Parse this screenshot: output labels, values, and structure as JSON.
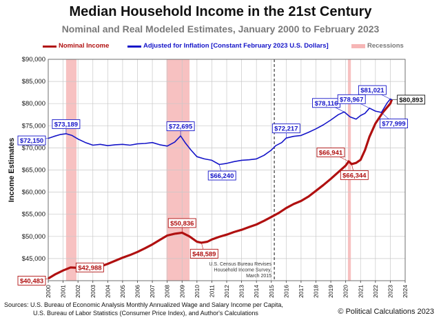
{
  "header": {
    "title": "Median Household Income in the 21st Century",
    "subtitle": "Nominal and Real Modeled Estimates, January 2000 to February 2023"
  },
  "legend": {
    "nominal": "Nominal Income",
    "real": "Adjusted for Inflation [Constant February 2023 U.S. Dollars]",
    "recessions": "Recessions"
  },
  "colors": {
    "nominal": "#b01010",
    "real": "#1414c8",
    "recession": "#f6b6b6",
    "grid": "#c8c8c8"
  },
  "footer": {
    "sources_line1": "Sources: U.S. Bureau of Economic Analysis Monthly Annualized Wage and Salary Income per Capita,",
    "sources_line2": "U.S. Bureau of Labor Statistics (Consumer Price Index), and Author's Calculations",
    "copyright": "© Political Calculations 2023"
  },
  "chart_data": {
    "type": "line",
    "ylabel": "Income Estimates",
    "xlabel": "",
    "xlim": [
      2000,
      2024
    ],
    "ylim": [
      40000,
      90000
    ],
    "y_ticks": [
      40000,
      45000,
      50000,
      55000,
      60000,
      65000,
      70000,
      75000,
      80000,
      85000,
      90000
    ],
    "y_tick_labels": [
      "$40,000",
      "$45,000",
      "$50,000",
      "$55,000",
      "$60,000",
      "$65,000",
      "$70,000",
      "$75,000",
      "$80,000",
      "$85,000",
      "$90,000"
    ],
    "x_ticks": [
      2000,
      2001,
      2002,
      2003,
      2004,
      2005,
      2006,
      2007,
      2008,
      2009,
      2010,
      2011,
      2012,
      2013,
      2014,
      2015,
      2016,
      2017,
      2018,
      2019,
      2020,
      2021,
      2022,
      2023,
      2024
    ],
    "x_tick_labels": [
      "2000",
      "2001",
      "2002",
      "2003",
      "2004",
      "2005",
      "2006",
      "2007",
      "2008",
      "2009",
      "2010",
      "2011",
      "2012",
      "2013",
      "2014",
      "2015",
      "2016",
      "2017",
      "2018",
      "2019",
      "2020",
      "2021",
      "2022",
      "2023",
      "2024"
    ],
    "grid": true,
    "legend_position": "top",
    "recessions": [
      [
        2001.2,
        2001.9
      ],
      [
        2007.95,
        2009.5
      ],
      [
        2020.15,
        2020.35
      ]
    ],
    "vline": {
      "x": 2015.2,
      "label_lines": [
        "U.S. Census Bureau Revises",
        "Household Income Survey,",
        "March 2015"
      ]
    },
    "series": [
      {
        "name": "Nominal Income",
        "points": [
          [
            2000,
            40483
          ],
          [
            2000.5,
            41500
          ],
          [
            2001,
            42300
          ],
          [
            2001.5,
            42988
          ],
          [
            2002,
            42900
          ],
          [
            2002.5,
            42800
          ],
          [
            2003,
            42900
          ],
          [
            2003.5,
            43200
          ],
          [
            2004,
            43800
          ],
          [
            2004.5,
            44500
          ],
          [
            2005,
            45200
          ],
          [
            2005.5,
            45800
          ],
          [
            2006,
            46500
          ],
          [
            2006.5,
            47300
          ],
          [
            2007,
            48200
          ],
          [
            2007.5,
            49200
          ],
          [
            2008,
            50200
          ],
          [
            2008.5,
            50600
          ],
          [
            2009,
            50836
          ],
          [
            2009.5,
            50000
          ],
          [
            2010,
            48800
          ],
          [
            2010.3,
            48589
          ],
          [
            2010.7,
            48800
          ],
          [
            2011,
            49300
          ],
          [
            2011.5,
            49900
          ],
          [
            2012,
            50400
          ],
          [
            2012.5,
            51000
          ],
          [
            2013,
            51500
          ],
          [
            2013.5,
            52100
          ],
          [
            2014,
            52700
          ],
          [
            2014.5,
            53500
          ],
          [
            2015,
            54400
          ],
          [
            2015.5,
            55300
          ],
          [
            2016,
            56400
          ],
          [
            2016.5,
            57300
          ],
          [
            2017,
            58000
          ],
          [
            2017.5,
            59000
          ],
          [
            2018,
            60300
          ],
          [
            2018.5,
            61600
          ],
          [
            2019,
            63000
          ],
          [
            2019.5,
            64500
          ],
          [
            2020,
            66000
          ],
          [
            2020.2,
            66941
          ],
          [
            2020.4,
            66344
          ],
          [
            2020.7,
            66600
          ],
          [
            2021,
            67300
          ],
          [
            2021.3,
            69500
          ],
          [
            2021.6,
            72500
          ],
          [
            2022,
            75500
          ],
          [
            2022.5,
            78000
          ],
          [
            2023,
            80000
          ],
          [
            2023.1,
            80893
          ]
        ]
      },
      {
        "name": "Adjusted for Inflation [Constant February 2023 U.S. Dollars]",
        "points": [
          [
            2000,
            72150
          ],
          [
            2000.4,
            72600
          ],
          [
            2000.8,
            73000
          ],
          [
            2001.2,
            73189
          ],
          [
            2001.6,
            72800
          ],
          [
            2002,
            72000
          ],
          [
            2002.5,
            71200
          ],
          [
            2003,
            70600
          ],
          [
            2003.5,
            70800
          ],
          [
            2004,
            70500
          ],
          [
            2004.5,
            70700
          ],
          [
            2005,
            70800
          ],
          [
            2005.5,
            70600
          ],
          [
            2006,
            70900
          ],
          [
            2006.5,
            71000
          ],
          [
            2007,
            71200
          ],
          [
            2007.5,
            70700
          ],
          [
            2008,
            70400
          ],
          [
            2008.5,
            71300
          ],
          [
            2008.9,
            72695
          ],
          [
            2009.2,
            71200
          ],
          [
            2009.6,
            69500
          ],
          [
            2010,
            68000
          ],
          [
            2010.5,
            67500
          ],
          [
            2011,
            67200
          ],
          [
            2011.5,
            66240
          ],
          [
            2012,
            66500
          ],
          [
            2012.5,
            66900
          ],
          [
            2013,
            67200
          ],
          [
            2013.5,
            67300
          ],
          [
            2014,
            67500
          ],
          [
            2014.5,
            68300
          ],
          [
            2015,
            69500
          ],
          [
            2015.3,
            70500
          ],
          [
            2015.7,
            71200
          ],
          [
            2016,
            72217
          ],
          [
            2016.5,
            72600
          ],
          [
            2017,
            72800
          ],
          [
            2017.5,
            73500
          ],
          [
            2018,
            74300
          ],
          [
            2018.5,
            75200
          ],
          [
            2019,
            76300
          ],
          [
            2019.5,
            77500
          ],
          [
            2019.9,
            78116
          ],
          [
            2020.3,
            77000
          ],
          [
            2020.7,
            76500
          ],
          [
            2021,
            77300
          ],
          [
            2021.3,
            77800
          ],
          [
            2021.6,
            78967
          ],
          [
            2022,
            78300
          ],
          [
            2022.4,
            77999
          ],
          [
            2022.8,
            80200
          ],
          [
            2023,
            81021
          ],
          [
            2023.1,
            80893
          ]
        ]
      }
    ],
    "annotations": [
      {
        "text": "$40,483",
        "series": "nominal",
        "x": 2000,
        "y": 40483,
        "placement": "left"
      },
      {
        "text": "$42,988",
        "series": "nominal",
        "x": 2001.5,
        "y": 42988,
        "placement": "right"
      },
      {
        "text": "$50,836",
        "series": "nominal",
        "x": 2009,
        "y": 50836,
        "placement": "above"
      },
      {
        "text": "$48,589",
        "series": "nominal",
        "x": 2010.3,
        "y": 48589,
        "placement": "below"
      },
      {
        "text": "$66,941",
        "series": "nominal",
        "x": 2020.2,
        "y": 66941,
        "placement": "above-left"
      },
      {
        "text": "$66,344",
        "series": "nominal",
        "x": 2020.4,
        "y": 66344,
        "placement": "below"
      },
      {
        "text": "$72,150",
        "series": "real",
        "x": 2000,
        "y": 72150,
        "placement": "left"
      },
      {
        "text": "$73,189",
        "series": "real",
        "x": 2001.2,
        "y": 73189,
        "placement": "above"
      },
      {
        "text": "$72,695",
        "series": "real",
        "x": 2008.9,
        "y": 72695,
        "placement": "above"
      },
      {
        "text": "$66,240",
        "series": "real",
        "x": 2011.5,
        "y": 66240,
        "placement": "below"
      },
      {
        "text": "$72,217",
        "series": "real",
        "x": 2016,
        "y": 72217,
        "placement": "above"
      },
      {
        "text": "$78,116",
        "series": "real",
        "x": 2019.9,
        "y": 78116,
        "placement": "above-left"
      },
      {
        "text": "$78,967",
        "series": "real",
        "x": 2021.6,
        "y": 78967,
        "placement": "above-left"
      },
      {
        "text": "$81,021",
        "series": "real",
        "x": 2023,
        "y": 81021,
        "placement": "above-left"
      },
      {
        "text": "$77,999",
        "series": "real",
        "x": 2022.4,
        "y": 77999,
        "placement": "below-right"
      },
      {
        "text": "$80,893",
        "series": "both",
        "x": 2023.1,
        "y": 80893,
        "placement": "right"
      }
    ]
  }
}
